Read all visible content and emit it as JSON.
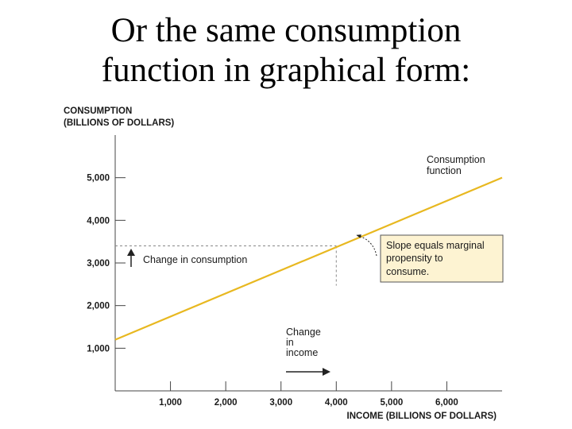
{
  "slide": {
    "title_line1": "Or the same consumption",
    "title_line2": "function in graphical form:"
  },
  "chart_data": {
    "type": "line",
    "title": "",
    "ylabel_line1": "CONSUMPTION",
    "ylabel_line2": "(BILLIONS OF DOLLARS)",
    "xlabel": "INCOME (BILLIONS OF DOLLARS)",
    "xlim": [
      0,
      7000
    ],
    "ylim": [
      0,
      6000
    ],
    "xticks": [
      1000,
      2000,
      3000,
      4000,
      5000,
      6000
    ],
    "xtick_labels": [
      "1,000",
      "2,000",
      "3,000",
      "4,000",
      "5,000",
      "6,000"
    ],
    "yticks": [
      1000,
      2000,
      3000,
      4000,
      5000
    ],
    "ytick_labels": [
      "1,000",
      "2,000",
      "3,000",
      "4,000",
      "5,000"
    ],
    "grid": false,
    "series": [
      {
        "name": "Consumption function",
        "color": "#e8b820",
        "x": [
          0,
          7000
        ],
        "y": [
          1200,
          5000
        ]
      }
    ],
    "annotations": {
      "series_label_line1": "Consumption",
      "series_label_line2": "function",
      "slope_box_line1": "Slope equals marginal",
      "slope_box_line2": "propensity to",
      "slope_box_line3": "consume.",
      "delta_c_label": "Change in consumption",
      "delta_y_line1": "Change",
      "delta_y_line2": "in",
      "delta_y_line3": "income"
    },
    "reference_point": {
      "x": 4000,
      "y": 3400
    }
  },
  "colors": {
    "line": "#e8b820",
    "slope_box_fill": "#fdf3d2",
    "axis": "#444444"
  }
}
